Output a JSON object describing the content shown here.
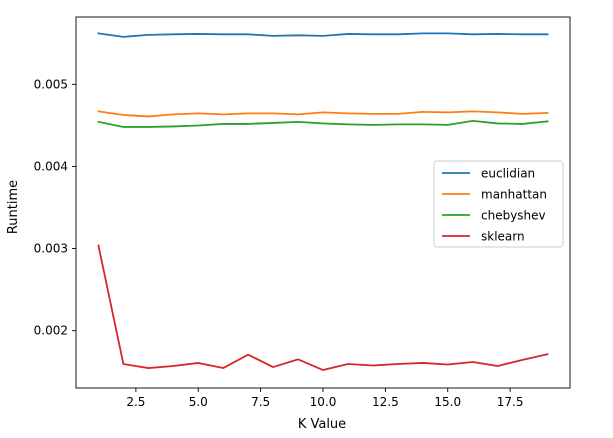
{
  "chart_data": {
    "type": "line",
    "title": "",
    "xlabel": "K Value",
    "ylabel": "Runtime",
    "xlim": [
      0.1,
      19.9
    ],
    "ylim": [
      0.001302,
      0.00582
    ],
    "xticks": [
      2.5,
      5.0,
      7.5,
      10.0,
      12.5,
      15.0,
      17.5
    ],
    "xtick_labels": [
      "2.5",
      "5.0",
      "7.5",
      "10.0",
      "12.5",
      "15.0",
      "17.5"
    ],
    "yticks": [
      0.002,
      0.003,
      0.004,
      0.005
    ],
    "ytick_labels": [
      "0.002",
      "0.003",
      "0.004",
      "0.005"
    ],
    "grid": false,
    "legend_position": "center-right",
    "x": [
      1,
      2,
      3,
      4,
      5,
      6,
      7,
      8,
      9,
      10,
      11,
      12,
      13,
      14,
      15,
      16,
      17,
      18,
      19
    ],
    "series": [
      {
        "name": "euclidian",
        "color": "#1f77b4",
        "values": [
          0.005621,
          0.005578,
          0.005602,
          0.005609,
          0.005614,
          0.005609,
          0.005609,
          0.00559,
          0.005597,
          0.00559,
          0.005614,
          0.005609,
          0.005609,
          0.005621,
          0.005621,
          0.005609,
          0.005614,
          0.005609,
          0.005609
        ]
      },
      {
        "name": "manhattan",
        "color": "#ff7f0e",
        "values": [
          0.004671,
          0.004627,
          0.004609,
          0.004634,
          0.004646,
          0.004634,
          0.004646,
          0.004646,
          0.004634,
          0.004659,
          0.004646,
          0.00464,
          0.00464,
          0.004665,
          0.004659,
          0.004671,
          0.004659,
          0.00464,
          0.004652
        ]
      },
      {
        "name": "chebyshev",
        "color": "#2ca02c",
        "values": [
          0.004543,
          0.004481,
          0.004481,
          0.004487,
          0.004499,
          0.004518,
          0.004518,
          0.00453,
          0.004543,
          0.004524,
          0.004512,
          0.004506,
          0.004512,
          0.004512,
          0.004506,
          0.004555,
          0.004524,
          0.004518,
          0.004549
        ]
      },
      {
        "name": "sklearn",
        "color": "#d62728",
        "values": [
          0.003036,
          0.001594,
          0.001545,
          0.00157,
          0.001607,
          0.001545,
          0.001708,
          0.001557,
          0.001651,
          0.001521,
          0.001594,
          0.001576,
          0.001594,
          0.001607,
          0.001588,
          0.001619,
          0.00157,
          0.001645,
          0.001714
        ]
      }
    ]
  }
}
